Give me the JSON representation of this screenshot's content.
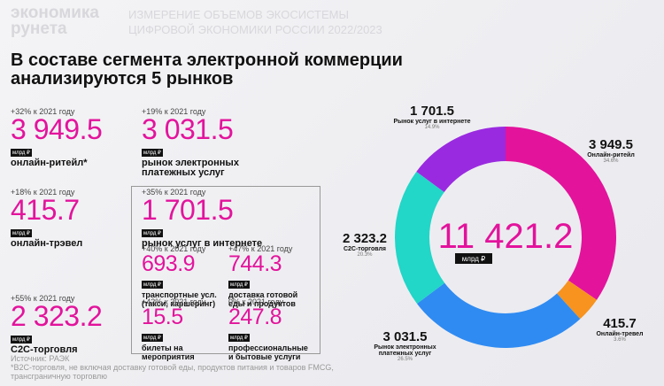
{
  "header": {
    "logo": [
      "экономика",
      "рунета"
    ],
    "subtitle": [
      "ИЗМЕРЕНИЕ ОБЪЕМОВ ЭКОСИСТЕМЫ",
      "ЦИФРОВОЙ ЭКОНОМИКИ РОССИИ 2022/2023"
    ],
    "title": [
      "В составе сегмента электронной коммерции",
      "анализируются 5 рынков"
    ]
  },
  "unit": "млрд ₽",
  "stats": [
    {
      "change": "+32% к 2021 году",
      "value": "3 949.5",
      "label": "онлайн-ритейл*"
    },
    {
      "change": "+19% к 2021 году",
      "value": "3 031.5",
      "label": "рынок электронных платежных услуг"
    },
    {
      "change": "+18% к 2021 году",
      "value": "415.7",
      "label": "онлайн-трэвел"
    },
    {
      "change": "+55% к 2021 году",
      "value": "2 323.2",
      "label": "С2С-торговля"
    }
  ],
  "box": {
    "change": "+35% к 2021 году",
    "value": "1 701.5",
    "label": "рынок услуг в интернете",
    "items": [
      {
        "change": "+40% к 2021 году",
        "value": "693.9",
        "label": "транспортные усл. (такси, каршеринг)"
      },
      {
        "change": "+47% к 2021 году",
        "value": "744.3",
        "label": "доставка готовой еды и продуктов"
      },
      {
        "change": "+42% к 2021 году",
        "value": "15.5",
        "label": "билеты на мероприятия"
      },
      {
        "change": "0% к 2021 году",
        "value": "247.8",
        "label": "профессиональные и бытовые услуги"
      }
    ]
  },
  "chart_data": {
    "type": "donut",
    "center_label": "11 421.2",
    "center_unit": "млрд ₽",
    "categories": [
      "Онлайн-ритейл",
      "Онлайн-тревел",
      "Рынок электронных платежных услуг",
      "С2С-торговля",
      "Рынок услуг в интернете"
    ],
    "values": [
      3949.5,
      415.7,
      3031.5,
      2323.2,
      1701.5
    ],
    "value_labels": [
      "3 949.5",
      "415.7",
      "3 031.5",
      "2 323.2",
      "1 701.5"
    ],
    "share_labels": [
      "34.6%",
      "3.6%",
      "26.5%",
      "20.3%",
      "14.9%"
    ],
    "colors": [
      "#e3139c",
      "#f7931e",
      "#2f8bf2",
      "#22d6c8",
      "#9a2ae0"
    ]
  },
  "footer": [
    "Источник: РАЭК",
    "*B2C-торговля, не включая доставку готовой еды, продуктов питания и товаров FMCG,",
    "трансграничную торговлю"
  ]
}
